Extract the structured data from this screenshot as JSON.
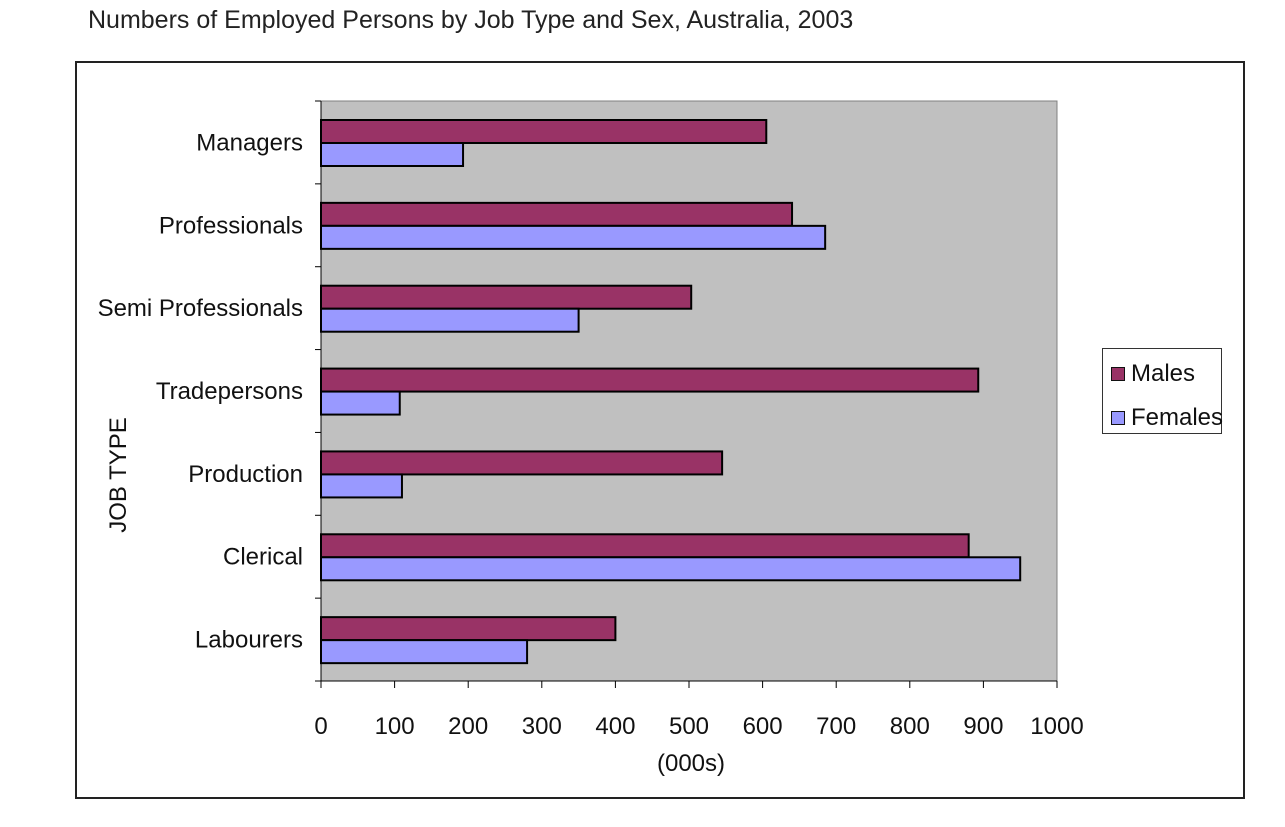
{
  "title": "Numbers of Employed Persons by Job Type and Sex, Australia, 2003",
  "chart_data": {
    "type": "bar",
    "orientation": "horizontal",
    "title": "Numbers of Employed Persons by Job Type and Sex, Australia, 2003",
    "xlabel": "(000s)",
    "ylabel": "JOB TYPE",
    "xlim": [
      0,
      1000
    ],
    "xticks": [
      0,
      100,
      200,
      300,
      400,
      500,
      600,
      700,
      800,
      900,
      1000
    ],
    "categories": [
      "Managers",
      "Professionals",
      "Semi Professionals",
      "Tradepersons",
      "Production",
      "Clerical",
      "Labourers"
    ],
    "series": [
      {
        "name": "Males",
        "color": "#993366",
        "values": [
          605,
          640,
          503,
          893,
          545,
          880,
          400
        ]
      },
      {
        "name": "Females",
        "color": "#9999ff",
        "values": [
          193,
          685,
          350,
          107,
          110,
          950,
          280
        ]
      }
    ],
    "plot_background": "#c0c0c0",
    "grid": false,
    "legend_position": "right"
  }
}
